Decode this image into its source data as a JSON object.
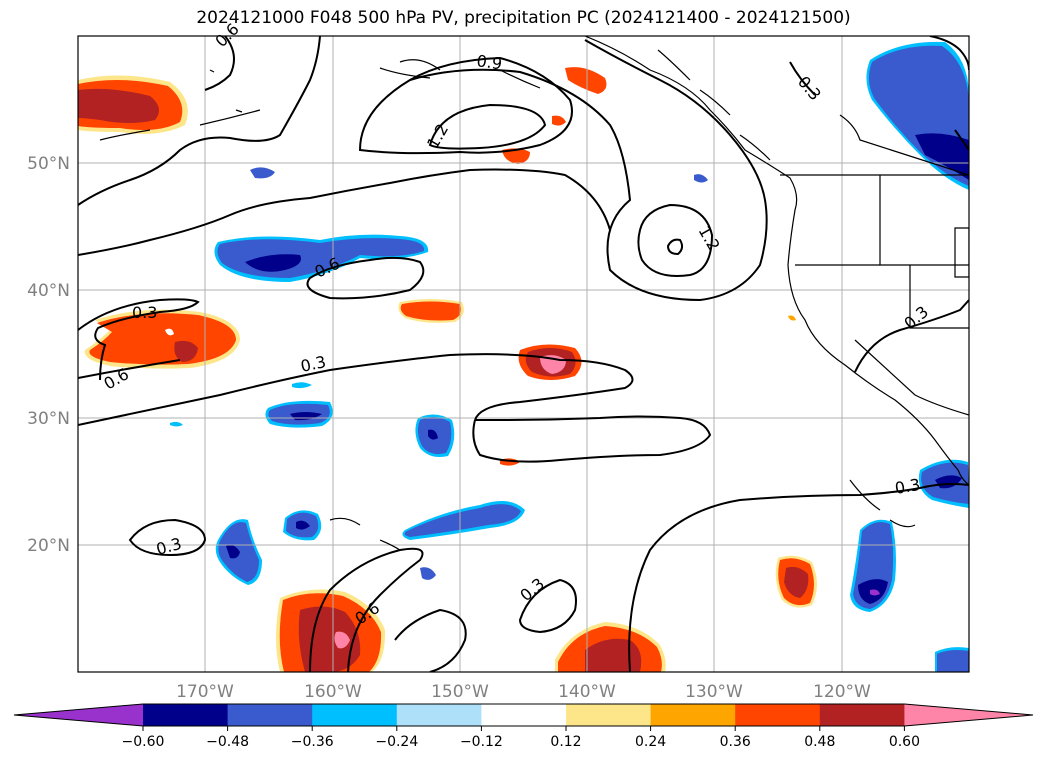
{
  "title": "2024121000 F048 500 hPa PV, precipitation PC (2024121400 - 2024121500)",
  "lat_labels": [
    "50°N",
    "40°N",
    "30°N",
    "20°N"
  ],
  "lon_labels": [
    "170°W",
    "160°W",
    "150°W",
    "140°W",
    "130°W",
    "120°W"
  ],
  "contour_labels": {
    "l03a": "0.3",
    "l06a": "0.6",
    "l03b": "0.3",
    "l03c": "0.3",
    "l06b": "0.6",
    "l09": "0.9",
    "l12a": "1.2",
    "l12b": "1.2",
    "l03d": "0.3",
    "l03e": "0.3",
    "l06c": "0.6",
    "l03f": "0.3",
    "l03g": "0.3",
    "l06d": "0.6"
  },
  "colorbar": {
    "ticks": [
      "−0.60",
      "−0.48",
      "−0.36",
      "−0.24",
      "−0.12",
      "0.12",
      "0.24",
      "0.36",
      "0.48",
      "0.60"
    ],
    "colors": [
      "#9932cc",
      "#00008b",
      "#3a5bcd",
      "#00bfff",
      "#aee0fa",
      "#ffffff",
      "#fde68a",
      "#ffa500",
      "#ff4500",
      "#b22222",
      "#ff85a8"
    ]
  },
  "colors": {
    "coast": "#000000",
    "grid": "#b0b0b0",
    "contour": "#000000"
  }
}
